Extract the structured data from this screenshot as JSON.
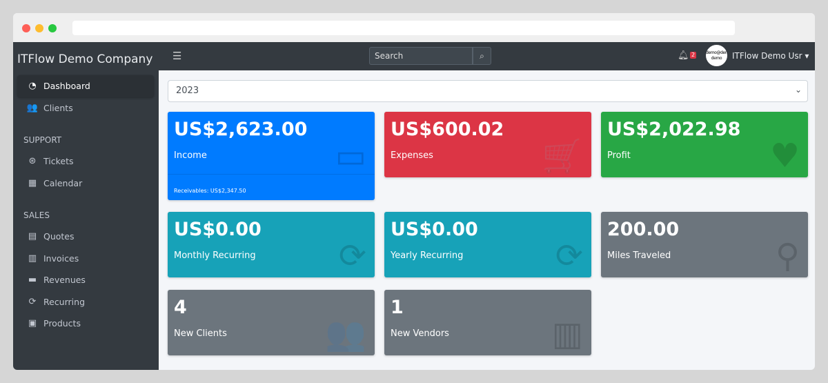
{
  "app": {
    "brand": "ITFlow Demo Company"
  },
  "sidebar": {
    "items": [
      {
        "label": "Dashboard",
        "icon": "dashboard-icon",
        "glyph": "◔",
        "active": true
      },
      {
        "label": "Clients",
        "icon": "users-icon",
        "glyph": "👥"
      }
    ],
    "sections": [
      {
        "header": "SUPPORT",
        "items": [
          {
            "label": "Tickets",
            "icon": "life-ring-icon",
            "glyph": "⊛"
          },
          {
            "label": "Calendar",
            "icon": "calendar-icon",
            "glyph": "▦"
          }
        ]
      },
      {
        "header": "SALES",
        "items": [
          {
            "label": "Quotes",
            "icon": "file-icon",
            "glyph": "▤"
          },
          {
            "label": "Invoices",
            "icon": "invoice-icon",
            "glyph": "▥"
          },
          {
            "label": "Revenues",
            "icon": "credit-card-icon",
            "glyph": "▬"
          },
          {
            "label": "Recurring",
            "icon": "sync-icon",
            "glyph": "⟳"
          },
          {
            "label": "Products",
            "icon": "box-icon",
            "glyph": "▣"
          }
        ]
      }
    ]
  },
  "topbar": {
    "search_placeholder": "Search",
    "notifications": "2",
    "avatar_text": "demo@demo demo",
    "user": "ITFlow Demo Usr"
  },
  "year": "2023",
  "cards": [
    {
      "value": "US$2,623.00",
      "label": "Income",
      "footer": "Receivables: US$2,347.50",
      "color": "#007bff",
      "icon": "credit-card-icon",
      "glyph": "▭"
    },
    {
      "value": "US$600.02",
      "label": "Expenses",
      "color": "#dc3545",
      "icon": "cart-icon",
      "glyph": "🛒"
    },
    {
      "value": "US$2,022.98",
      "label": "Profit",
      "color": "#28a745",
      "icon": "heart-icon",
      "glyph": "♥"
    },
    {
      "value": "US$0.00",
      "label": "Monthly Recurring",
      "color": "#17a2b8",
      "icon": "sync-icon",
      "glyph": "⟳"
    },
    {
      "value": "US$0.00",
      "label": "Yearly Recurring",
      "color": "#17a2b8",
      "icon": "sync-icon",
      "glyph": "⟳"
    },
    {
      "value": "200.00",
      "label": "Miles Traveled",
      "color": "#6c757d",
      "icon": "route-icon",
      "glyph": "⚲"
    },
    {
      "value": "4",
      "label": "New Clients",
      "color": "#6c757d",
      "icon": "users-icon",
      "glyph": "👥"
    },
    {
      "value": "1",
      "label": "New Vendors",
      "color": "#6c757d",
      "icon": "building-icon",
      "glyph": "▥"
    }
  ]
}
